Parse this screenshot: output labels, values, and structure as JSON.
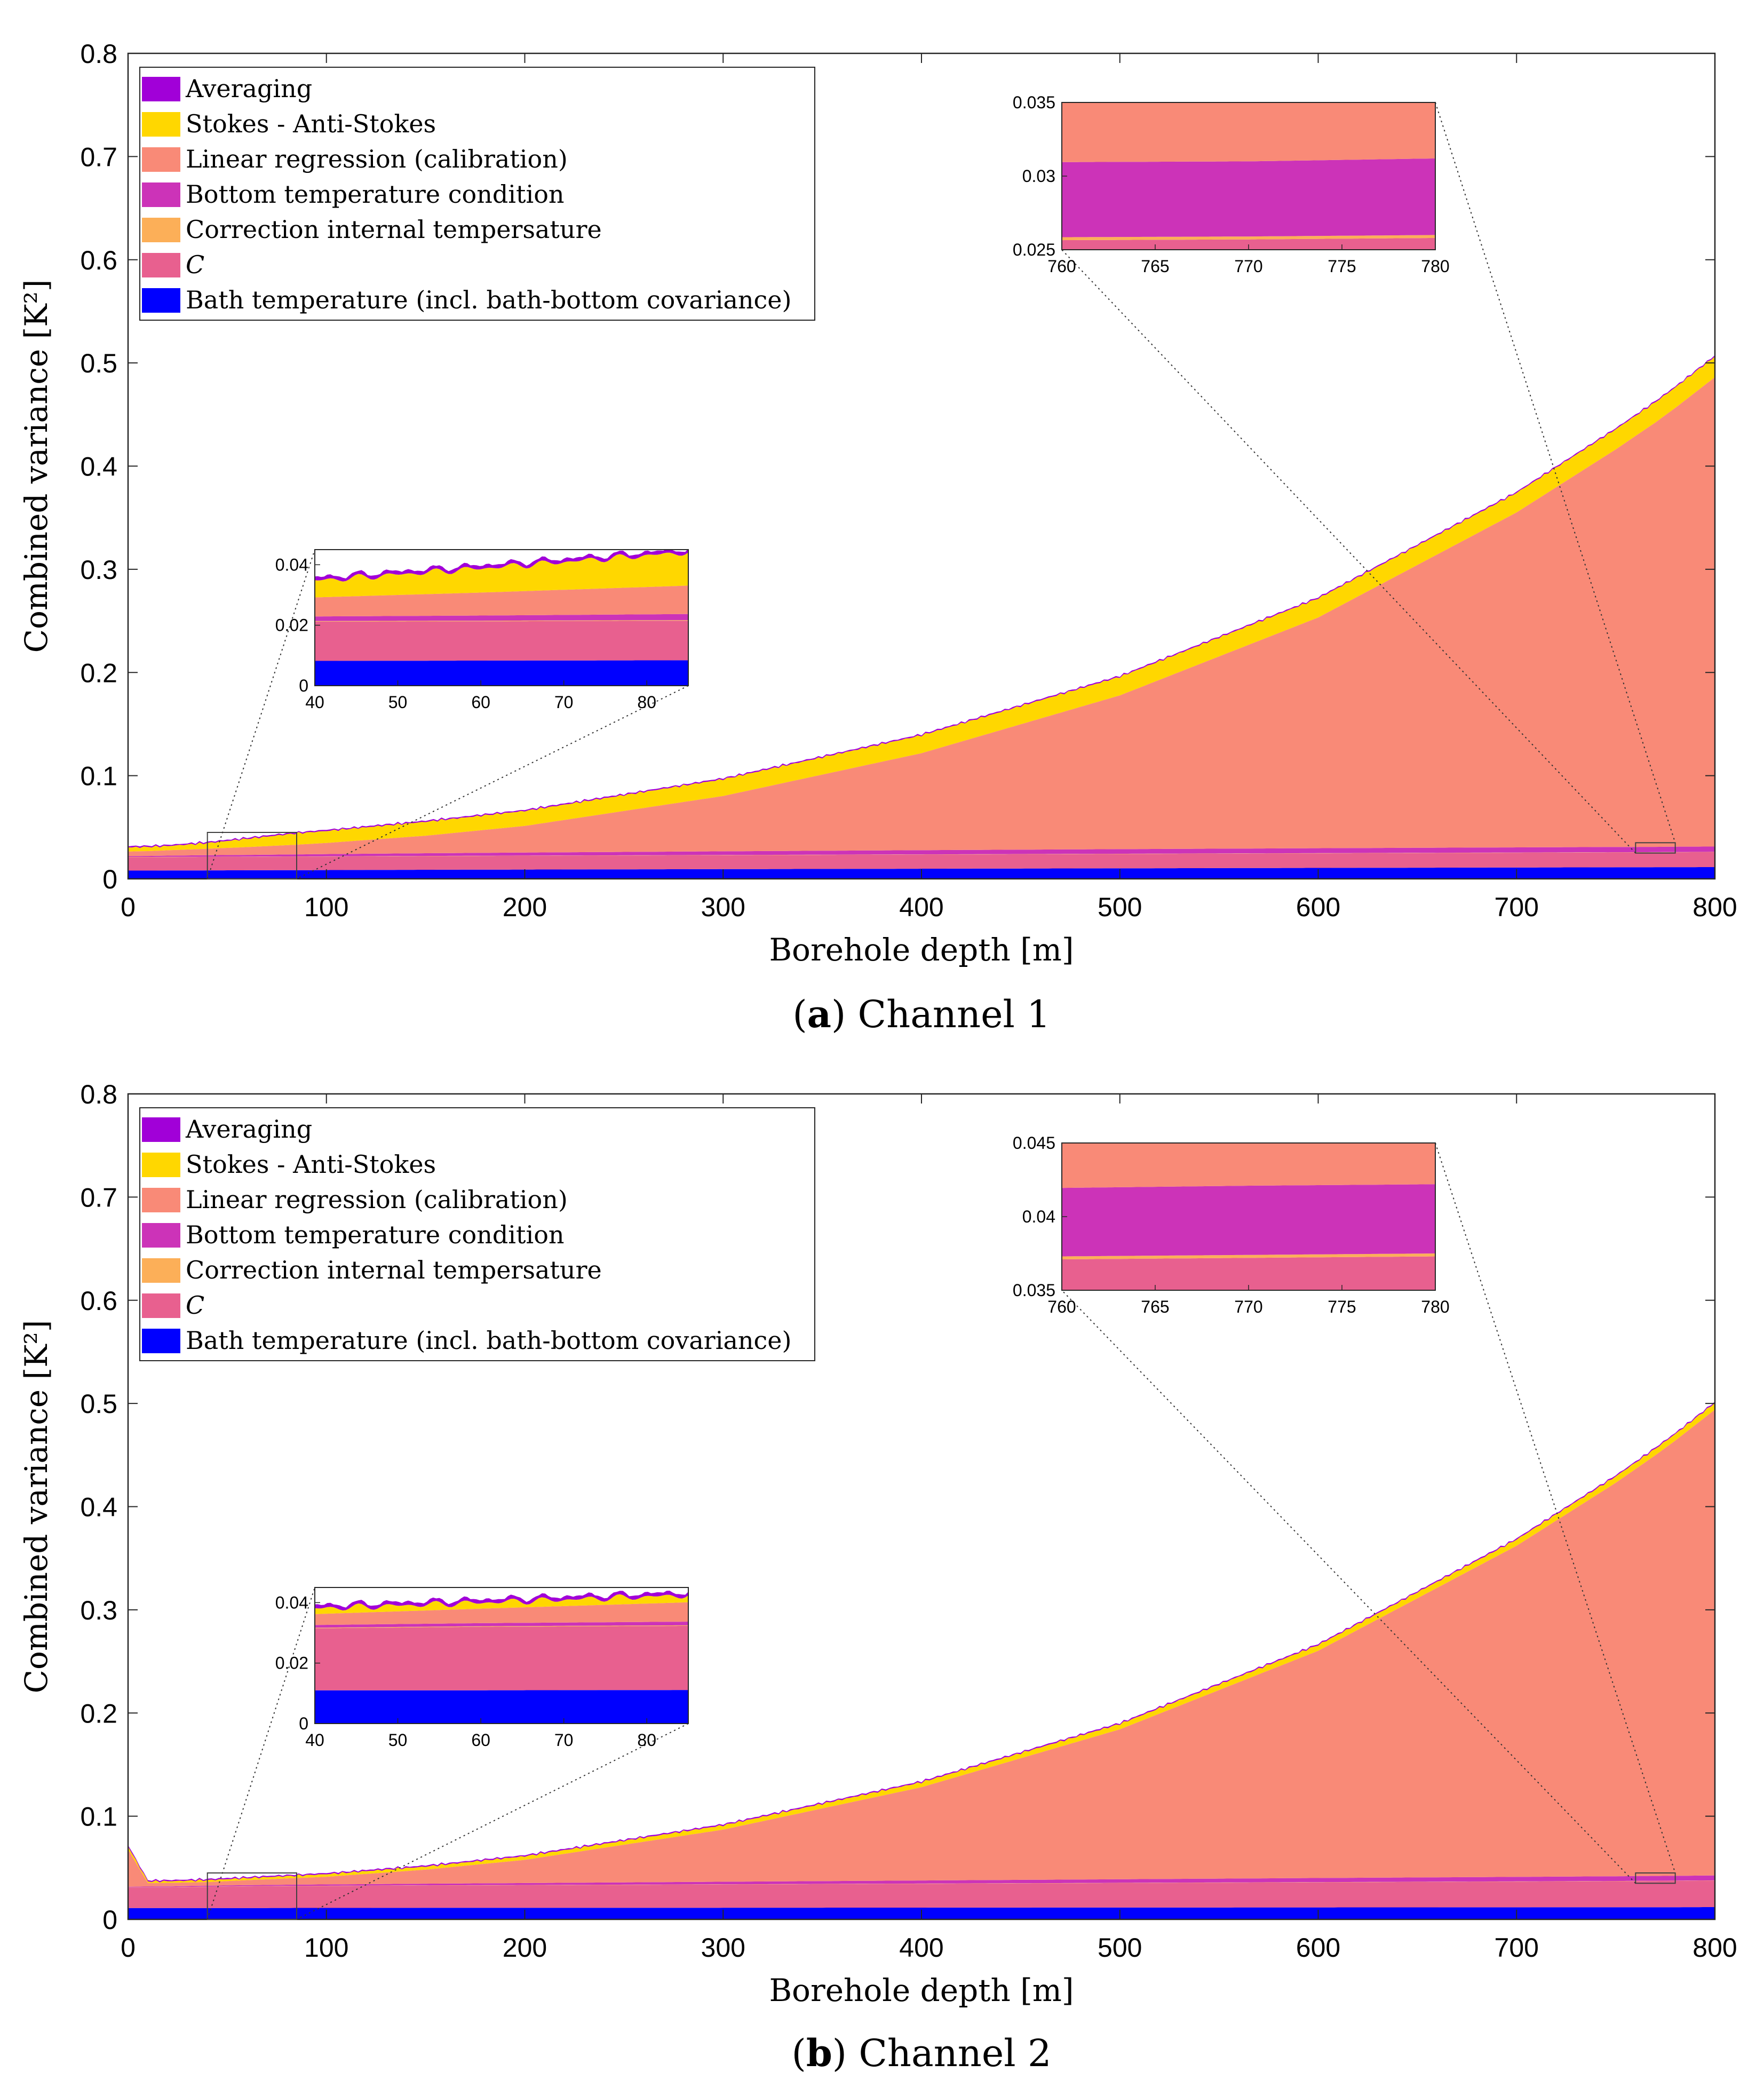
{
  "chart_data": [
    {
      "type": "area",
      "id": "a",
      "caption_letter": "a",
      "caption_text": ") Channel 1",
      "caption_open": "(",
      "xlabel": "Borehole depth [m]",
      "ylabel": "Combined variance [K²]",
      "xlim": [
        0,
        800
      ],
      "ylim": [
        0,
        0.8
      ],
      "x_ticks": [
        0,
        100,
        200,
        300,
        400,
        500,
        600,
        700,
        800
      ],
      "x_tick_labels": [
        "0",
        "100",
        "200",
        "300",
        "400",
        "500",
        "600",
        "700",
        "800"
      ],
      "y_ticks": [
        0,
        0.1,
        0.2,
        0.3,
        0.4,
        0.5,
        0.6,
        0.7,
        0.8
      ],
      "y_tick_labels": [
        "0",
        "0.1",
        "0.2",
        "0.3",
        "0.4",
        "0.5",
        "0.6",
        "0.7",
        "0.8"
      ],
      "x": [
        0,
        10,
        20,
        40,
        60,
        85,
        100,
        150,
        200,
        300,
        400,
        500,
        600,
        700,
        750,
        770,
        780,
        800
      ],
      "series": [
        {
          "name": "Bath temperature (incl. bath-bottom covariance)",
          "color": "#0000ff",
          "values": [
            0.008,
            0.008,
            0.0081,
            0.0082,
            0.0083,
            0.0084,
            0.0085,
            0.0088,
            0.009,
            0.0094,
            0.0098,
            0.0102,
            0.0106,
            0.011,
            0.0112,
            0.0113,
            0.0113,
            0.0114
          ]
        },
        {
          "name": "C",
          "color": "#e8608f",
          "values": [
            0.013,
            0.013,
            0.013,
            0.013,
            0.013,
            0.0131,
            0.0131,
            0.0132,
            0.0133,
            0.0135,
            0.0137,
            0.0139,
            0.0141,
            0.0143,
            0.0144,
            0.0144,
            0.0145,
            0.0145
          ]
        },
        {
          "name": "Correction internal tempersature",
          "color": "#fcaf58",
          "values": [
            0.0002,
            0.0002,
            0.0002,
            0.0002,
            0.0002,
            0.0002,
            0.0002,
            0.0002,
            0.0002,
            0.0002,
            0.0002,
            0.0002,
            0.0002,
            0.0002,
            0.0002,
            0.0002,
            0.0002,
            0.0002
          ]
        },
        {
          "name": "Bottom temperature condition",
          "color": "#cc33b8",
          "values": [
            0.0008,
            0.001,
            0.0012,
            0.0015,
            0.0017,
            0.002,
            0.0022,
            0.0026,
            0.003,
            0.0036,
            0.0041,
            0.0045,
            0.0048,
            0.005,
            0.0051,
            0.0051,
            0.0052,
            0.0052
          ]
        },
        {
          "name": "Linear regression (calibration)",
          "color": "#f98a77",
          "values": [
            0.0045,
            0.0047,
            0.0052,
            0.0063,
            0.0076,
            0.0094,
            0.0108,
            0.017,
            0.0258,
            0.0536,
            0.094,
            0.149,
            0.2236,
            0.3246,
            0.3853,
            0.4113,
            0.4252,
            0.4549
          ]
        },
        {
          "name": "Stokes - Anti-Stokes",
          "color": "#ffd700",
          "values": [
            0.004,
            0.004,
            0.0041,
            0.0055,
            0.008,
            0.011,
            0.0116,
            0.0135,
            0.0145,
            0.0162,
            0.0173,
            0.018,
            0.0185,
            0.019,
            0.0195,
            0.0197,
            0.0198,
            0.02
          ]
        },
        {
          "name": "Averaging",
          "color": "#a100d8",
          "values": [
            0.001,
            0.0008,
            0.0008,
            0.0008,
            0.0008,
            0.0008,
            0.0008,
            0.0008,
            0.0008,
            0.0008,
            0.0008,
            0.0008,
            0.0008,
            0.0008,
            0.0008,
            0.0008,
            0.0008,
            0.0008
          ]
        }
      ],
      "legend_position": "top-left",
      "insets": [
        {
          "xlim": [
            40,
            85
          ],
          "ylim": [
            0,
            0.045
          ],
          "x_ticks": [
            40,
            50,
            60,
            70,
            80
          ],
          "x_tick_labels": [
            "40",
            "50",
            "60",
            "70",
            "80"
          ],
          "y_ticks": [
            0,
            0.02,
            0.04
          ],
          "y_tick_labels": [
            "0",
            "0.02",
            "0.04"
          ]
        },
        {
          "xlim": [
            760,
            780
          ],
          "ylim": [
            0.025,
            0.035
          ],
          "x_ticks": [
            760,
            765,
            770,
            775,
            780
          ],
          "x_tick_labels": [
            "760",
            "765",
            "770",
            "775",
            "780"
          ],
          "y_ticks": [
            0.025,
            0.03,
            0.035
          ],
          "y_tick_labels": [
            "0.025",
            "0.03",
            "0.035"
          ]
        }
      ]
    },
    {
      "type": "area",
      "id": "b",
      "caption_letter": "b",
      "caption_text": ") Channel 2",
      "caption_open": "(",
      "xlabel": "Borehole depth [m]",
      "ylabel": "Combined variance [K²]",
      "xlim": [
        0,
        800
      ],
      "ylim": [
        0,
        0.8
      ],
      "x_ticks": [
        0,
        100,
        200,
        300,
        400,
        500,
        600,
        700,
        800
      ],
      "x_tick_labels": [
        "0",
        "100",
        "200",
        "300",
        "400",
        "500",
        "600",
        "700",
        "800"
      ],
      "y_ticks": [
        0,
        0.1,
        0.2,
        0.3,
        0.4,
        0.5,
        0.6,
        0.7,
        0.8
      ],
      "y_tick_labels": [
        "0",
        "0.1",
        "0.2",
        "0.3",
        "0.4",
        "0.5",
        "0.6",
        "0.7",
        "0.8"
      ],
      "x": [
        0,
        10,
        20,
        40,
        60,
        85,
        100,
        150,
        200,
        300,
        400,
        500,
        600,
        700,
        750,
        770,
        780,
        800
      ],
      "series": [
        {
          "name": "Bath temperature (incl. bath-bottom covariance)",
          "color": "#0000ff",
          "values": [
            0.011,
            0.011,
            0.011,
            0.011,
            0.011,
            0.0111,
            0.0111,
            0.0112,
            0.0112,
            0.0113,
            0.0114,
            0.0115,
            0.0116,
            0.0117,
            0.0118,
            0.0118,
            0.0118,
            0.0119
          ]
        },
        {
          "name": "C",
          "color": "#e8608f",
          "values": [
            0.02,
            0.02,
            0.02,
            0.0205,
            0.021,
            0.0212,
            0.0213,
            0.0216,
            0.0219,
            0.0225,
            0.0231,
            0.0237,
            0.0243,
            0.0249,
            0.0252,
            0.0254,
            0.0255,
            0.0257
          ]
        },
        {
          "name": "Correction internal tempersature",
          "color": "#fcaf58",
          "values": [
            0.0002,
            0.0002,
            0.0002,
            0.0002,
            0.0002,
            0.0002,
            0.0002,
            0.0002,
            0.0002,
            0.0002,
            0.0002,
            0.0002,
            0.0002,
            0.0002,
            0.0002,
            0.0002,
            0.0002,
            0.0002
          ]
        },
        {
          "name": "Bottom temperature condition",
          "color": "#cc33b8",
          "values": [
            0.0005,
            0.0006,
            0.0007,
            0.0009,
            0.001,
            0.0012,
            0.0013,
            0.0016,
            0.0019,
            0.0025,
            0.003,
            0.0035,
            0.004,
            0.0044,
            0.0046,
            0.0047,
            0.0047,
            0.0048
          ]
        },
        {
          "name": "Linear regression (calibration)",
          "color": "#f98a77",
          "values": [
            0.036,
            0.0035,
            0.0035,
            0.0036,
            0.0048,
            0.0064,
            0.0074,
            0.0136,
            0.0225,
            0.0505,
            0.0904,
            0.1453,
            0.2202,
            0.3209,
            0.3813,
            0.4078,
            0.4218,
            0.4514
          ]
        },
        {
          "name": "Stokes - Anti-Stokes",
          "color": "#ffd700",
          "values": [
            0.003,
            0.0015,
            0.0016,
            0.0018,
            0.002,
            0.0023,
            0.0025,
            0.003,
            0.0035,
            0.0042,
            0.0048,
            0.0052,
            0.0056,
            0.006,
            0.0062,
            0.0063,
            0.0064,
            0.0065
          ]
        },
        {
          "name": "Averaging",
          "color": "#a100d8",
          "values": [
            0.0012,
            0.0008,
            0.0008,
            0.0008,
            0.0008,
            0.0008,
            0.0008,
            0.0008,
            0.0008,
            0.0008,
            0.0008,
            0.0008,
            0.0008,
            0.0008,
            0.0008,
            0.0008,
            0.0008,
            0.0008
          ]
        }
      ],
      "legend_position": "top-left",
      "insets": [
        {
          "xlim": [
            40,
            85
          ],
          "ylim": [
            0,
            0.045
          ],
          "x_ticks": [
            40,
            50,
            60,
            70,
            80
          ],
          "x_tick_labels": [
            "40",
            "50",
            "60",
            "70",
            "80"
          ],
          "y_ticks": [
            0,
            0.02,
            0.04
          ],
          "y_tick_labels": [
            "0",
            "0.02",
            "0.04"
          ]
        },
        {
          "xlim": [
            760,
            780
          ],
          "ylim": [
            0.035,
            0.045
          ],
          "x_ticks": [
            760,
            765,
            770,
            775,
            780
          ],
          "x_tick_labels": [
            "760",
            "765",
            "770",
            "775",
            "780"
          ],
          "y_ticks": [
            0.035,
            0.04,
            0.045
          ],
          "y_tick_labels": [
            "0.035",
            "0.04",
            "0.045"
          ]
        }
      ]
    }
  ],
  "legend_order": [
    "Averaging",
    "Stokes - Anti-Stokes",
    "Linear regression (calibration)",
    "Bottom temperature condition",
    "Correction internal tempersature",
    "C",
    "Bath temperature (incl. bath-bottom covariance)"
  ]
}
